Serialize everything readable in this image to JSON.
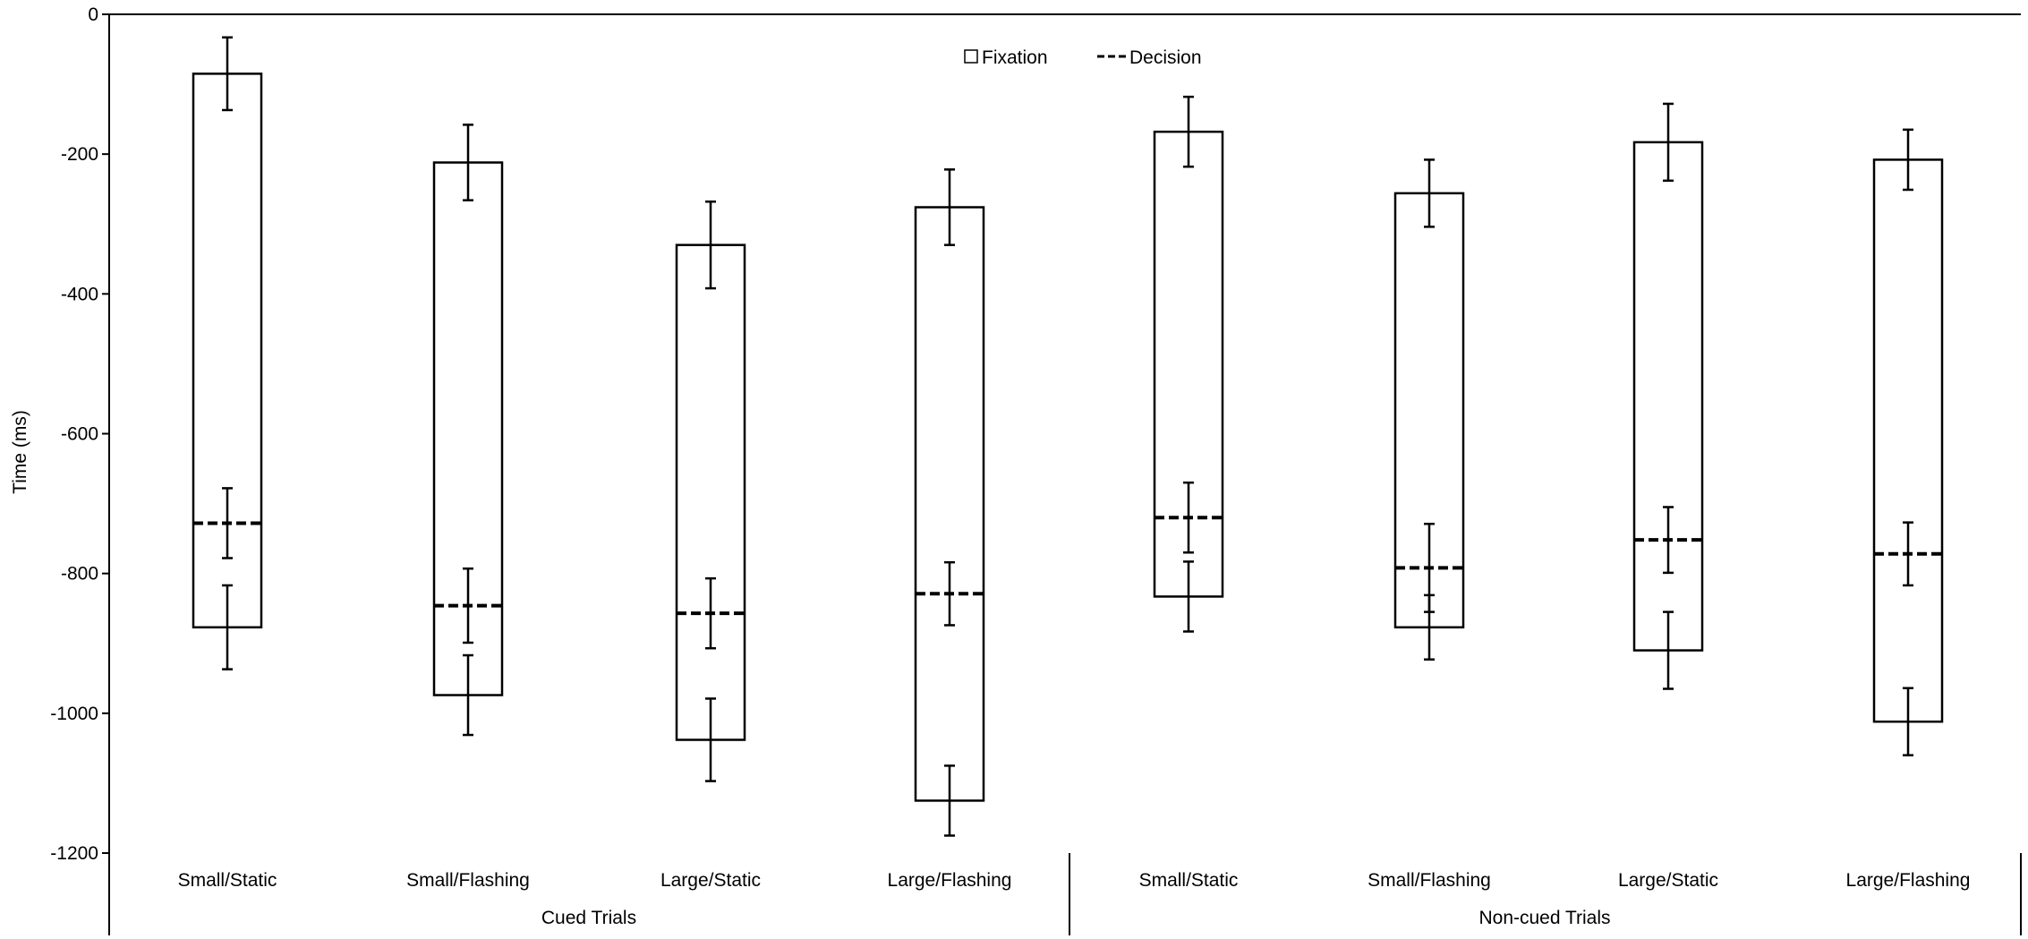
{
  "chart_data": {
    "type": "bar",
    "title": "",
    "ylabel": "Time (ms)",
    "xlabel": "",
    "ylim": [
      -1200,
      0
    ],
    "yticks": [
      0,
      -200,
      -400,
      -600,
      -800,
      -1000,
      -1200
    ],
    "grid": false,
    "legend": {
      "placement": "top-center",
      "entries": [
        "Fixation",
        "Decision"
      ]
    },
    "groups": [
      {
        "label": "Cued Trials",
        "categories": [
          {
            "label": "Small/Static",
            "fixation_top": -85,
            "fixation_top_err": 52,
            "fixation_bottom": -877,
            "fixation_bottom_err": 60,
            "decision": -728,
            "decision_err": 50
          },
          {
            "label": "Small/Flashing",
            "fixation_top": -212,
            "fixation_top_err": 54,
            "fixation_bottom": -974,
            "fixation_bottom_err": 57,
            "decision": -846,
            "decision_err": 53
          },
          {
            "label": "Large/Static",
            "fixation_top": -330,
            "fixation_top_err": 62,
            "fixation_bottom": -1038,
            "fixation_bottom_err": 59,
            "decision": -857,
            "decision_err": 50
          },
          {
            "label": "Large/Flashing",
            "fixation_top": -276,
            "fixation_top_err": 54,
            "fixation_bottom": -1125,
            "fixation_bottom_err": 50,
            "decision": -829,
            "decision_err": 45
          }
        ]
      },
      {
        "label": "Non-cued Trials",
        "categories": [
          {
            "label": "Small/Static",
            "fixation_top": -168,
            "fixation_top_err": 50,
            "fixation_bottom": -833,
            "fixation_bottom_err": 50,
            "decision": -720,
            "decision_err": 50
          },
          {
            "label": "Small/Flashing",
            "fixation_top": -256,
            "fixation_top_err": 48,
            "fixation_bottom": -877,
            "fixation_bottom_err": 46,
            "decision": -792,
            "decision_err": 63
          },
          {
            "label": "Large/Static",
            "fixation_top": -183,
            "fixation_top_err": 55,
            "fixation_bottom": -910,
            "fixation_bottom_err": 55,
            "decision": -752,
            "decision_err": 47
          },
          {
            "label": "Large/Flashing",
            "fixation_top": -208,
            "fixation_top_err": 43,
            "fixation_bottom": -1012,
            "fixation_bottom_err": 48,
            "decision": -772,
            "decision_err": 45
          }
        ]
      }
    ]
  },
  "colors": {
    "stroke": "#000000",
    "background": "#ffffff"
  }
}
